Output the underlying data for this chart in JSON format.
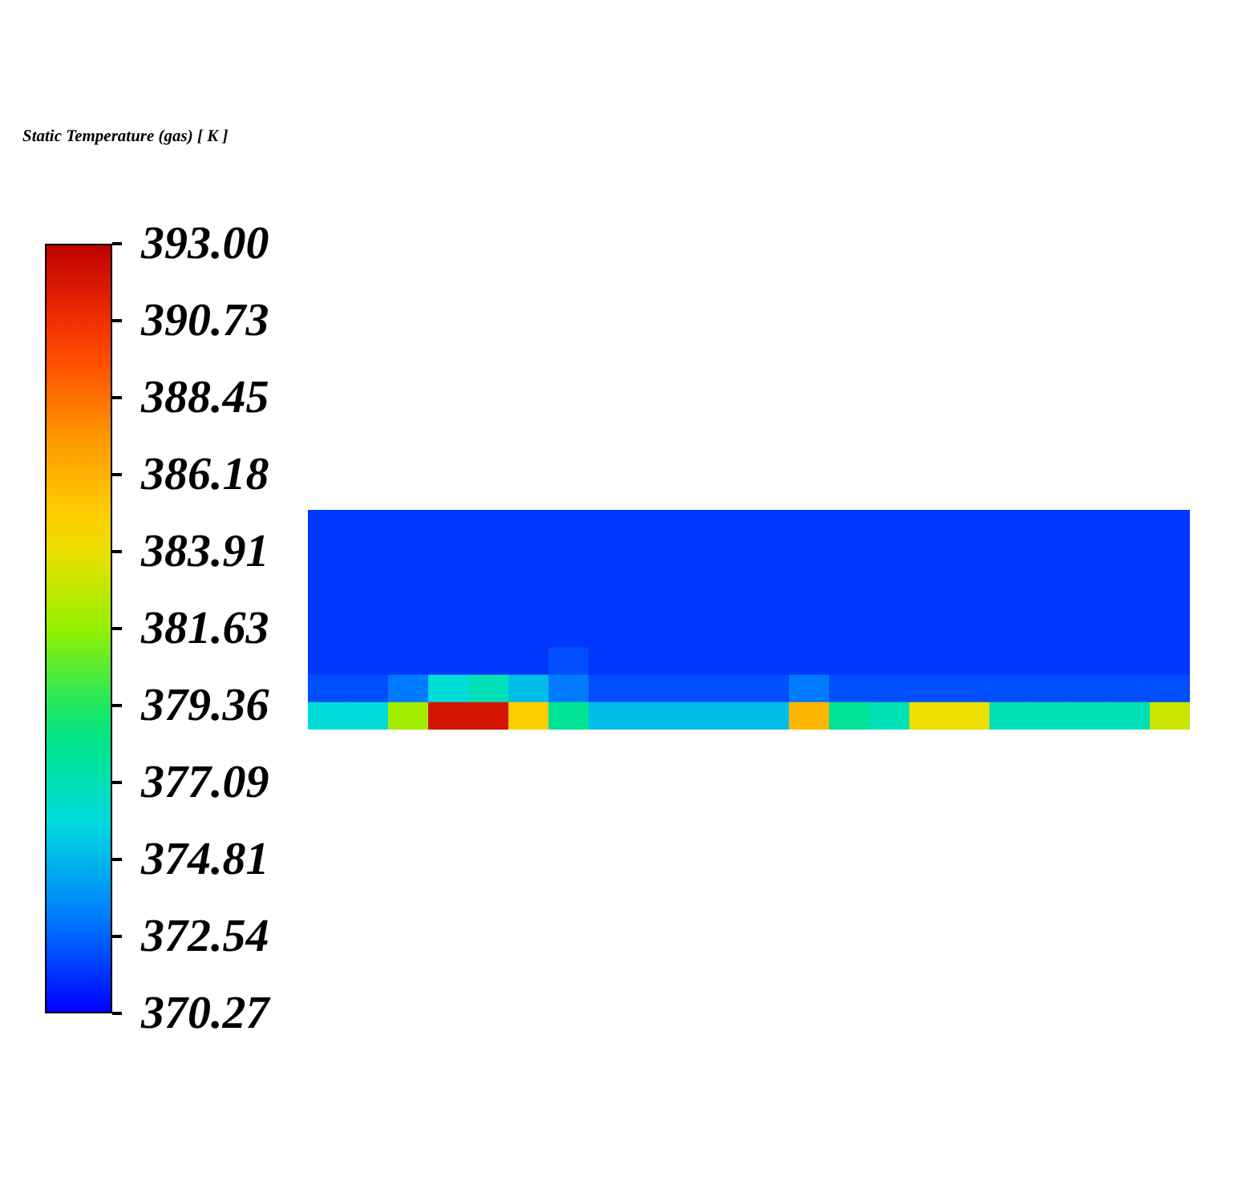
{
  "chart_data": {
    "type": "heatmap",
    "clabel": "Static Temperature (gas) [ K ]",
    "categories": [
      null,
      null,
      null,
      null,
      null,
      null,
      null,
      null,
      null,
      null,
      null,
      null,
      null,
      null,
      null,
      null,
      null,
      null,
      null,
      null,
      null,
      null
    ],
    "y_categories": [
      null,
      null,
      null,
      null,
      null,
      null,
      null,
      null
    ],
    "cells": [
      [
        371.5,
        371.5,
        371.5,
        371.5,
        371.5,
        371.5,
        371.5,
        371.5,
        371.5,
        371.5,
        371.5,
        371.5,
        371.5,
        371.5,
        371.5,
        371.5,
        371.5,
        371.5,
        371.5,
        371.5,
        371.5,
        371.5
      ],
      [
        371.5,
        371.5,
        371.5,
        371.5,
        371.5,
        371.5,
        371.5,
        371.5,
        371.5,
        371.5,
        371.5,
        371.5,
        371.5,
        371.5,
        371.5,
        371.5,
        371.5,
        371.5,
        371.5,
        371.5,
        371.5,
        371.5
      ],
      [
        371.5,
        371.5,
        371.5,
        371.5,
        371.5,
        371.5,
        371.5,
        371.5,
        371.5,
        371.5,
        371.5,
        371.5,
        371.5,
        371.5,
        371.5,
        371.5,
        371.5,
        371.5,
        371.5,
        371.5,
        371.5,
        371.5
      ],
      [
        371.5,
        371.5,
        371.5,
        371.5,
        371.5,
        371.5,
        371.5,
        371.5,
        371.5,
        371.5,
        371.5,
        371.5,
        371.5,
        371.5,
        371.5,
        371.5,
        371.5,
        371.5,
        371.5,
        371.5,
        371.5,
        371.5
      ],
      [
        371.5,
        371.5,
        371.5,
        371.5,
        371.5,
        371.5,
        371.5,
        371.5,
        371.5,
        371.5,
        371.5,
        371.5,
        371.5,
        371.5,
        371.5,
        371.5,
        371.5,
        371.5,
        371.5,
        371.5,
        371.5,
        371.5
      ],
      [
        371.5,
        371.5,
        371.5,
        371.5,
        371.5,
        371.5,
        372,
        371.5,
        371.5,
        371.5,
        371.5,
        371.5,
        371.5,
        371.5,
        371.5,
        371.5,
        371.5,
        371.5,
        371.5,
        371.5,
        371.5,
        371.5
      ],
      [
        372,
        372,
        373,
        376,
        377,
        375,
        373,
        372,
        372,
        372,
        372,
        372,
        373,
        372,
        372,
        372,
        372,
        372,
        372,
        372,
        372,
        372
      ],
      [
        376,
        376,
        382,
        392,
        392,
        385,
        378,
        375,
        375,
        375,
        375,
        375,
        386,
        378,
        377,
        384,
        384,
        377,
        377,
        377,
        377,
        383
      ]
    ],
    "clim": [
      370.27,
      393.0
    ],
    "cticks": [
      {
        "value": 393.0,
        "label": "393.00"
      },
      {
        "value": 390.73,
        "label": "390.73"
      },
      {
        "value": 388.45,
        "label": "388.45"
      },
      {
        "value": 386.18,
        "label": "386.18"
      },
      {
        "value": 383.91,
        "label": "383.91"
      },
      {
        "value": 381.63,
        "label": "381.63"
      },
      {
        "value": 379.36,
        "label": "379.36"
      },
      {
        "value": 377.09,
        "label": "377.09"
      },
      {
        "value": 374.81,
        "label": "374.81"
      },
      {
        "value": 372.54,
        "label": "372.54"
      },
      {
        "value": 370.27,
        "label": "370.27"
      }
    ]
  }
}
